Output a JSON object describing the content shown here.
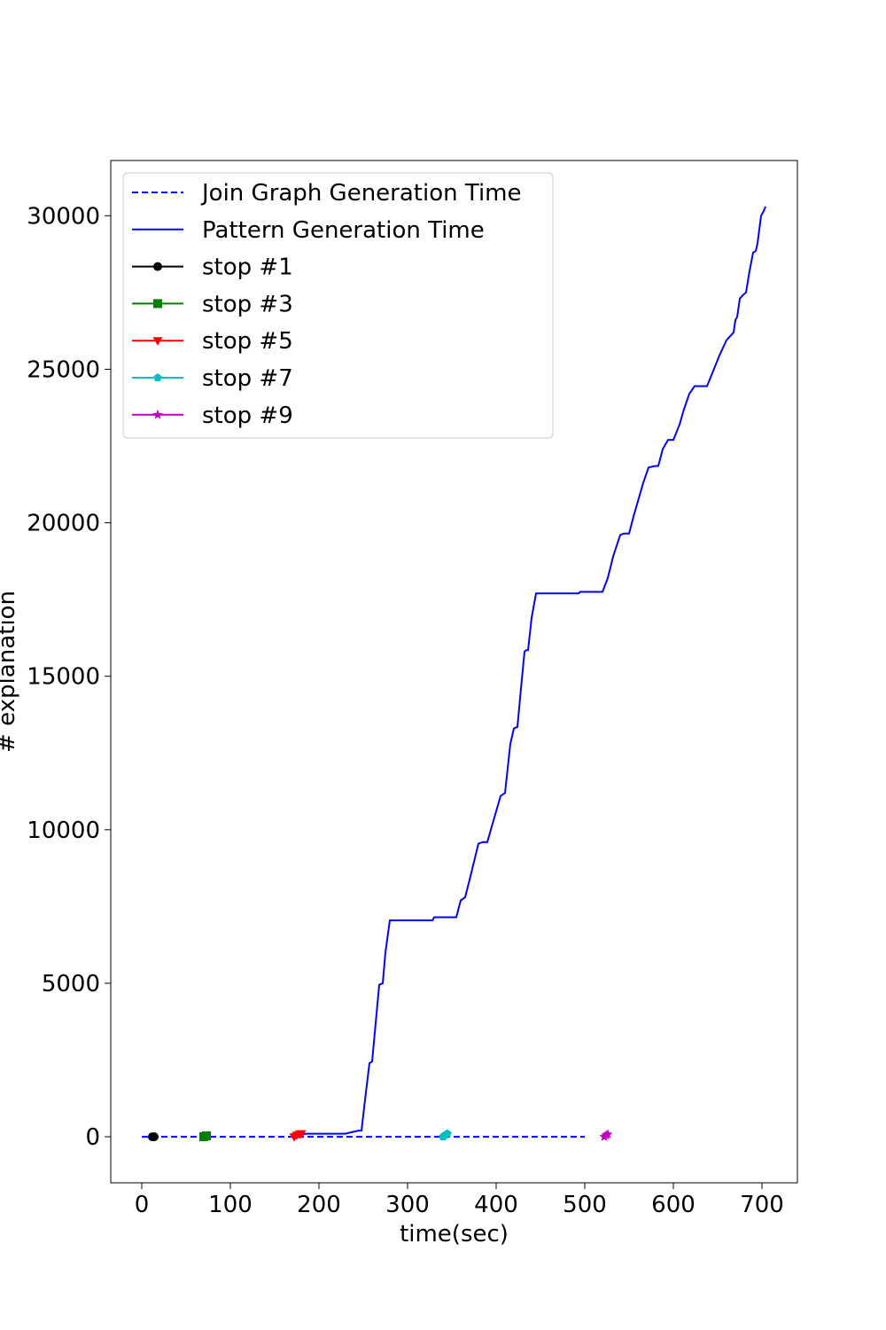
{
  "chart_data": {
    "type": "line",
    "title": "",
    "xlabel": "time(sec)",
    "ylabel": "# explanation",
    "xlim": [
      -35,
      740
    ],
    "ylim": [
      -1500,
      31800
    ],
    "xticks": [
      0,
      100,
      200,
      300,
      400,
      500,
      600,
      700
    ],
    "yticks": [
      0,
      5000,
      10000,
      15000,
      20000,
      25000,
      30000
    ],
    "grid": false,
    "legend_position": "upper-left",
    "series": [
      {
        "name": "Join Graph Generation Time",
        "style": "dashed",
        "color": "#0000ff",
        "x": [
          0,
          500
        ],
        "y": [
          0,
          0
        ]
      },
      {
        "name": "Pattern Generation Time",
        "style": "solid",
        "color": "#0000ff",
        "x": [
          175,
          180,
          185,
          230,
          237,
          245,
          248,
          252,
          257,
          260,
          264,
          268,
          272,
          275,
          280,
          285,
          290,
          300,
          315,
          328,
          330,
          340,
          350,
          355,
          360,
          365,
          372,
          380,
          385,
          390,
          395,
          400,
          405,
          410,
          416,
          420,
          424,
          428,
          432,
          434,
          436,
          440,
          445,
          448,
          451,
          456,
          460,
          475,
          493,
          495,
          505,
          520,
          526,
          532,
          540,
          544,
          550,
          555,
          560,
          566,
          572,
          580,
          583,
          588,
          594,
          600,
          607,
          612,
          618,
          624,
          630,
          634,
          638,
          645,
          652,
          660,
          668,
          670,
          672,
          675,
          678,
          682,
          686,
          690,
          693,
          695,
          699,
          702,
          704
        ],
        "y": [
          0,
          50,
          100,
          100,
          150,
          200,
          200,
          1200,
          2400,
          2450,
          3700,
          4950,
          5000,
          6000,
          7050,
          7050,
          7050,
          7050,
          7050,
          7050,
          7150,
          7150,
          7150,
          7150,
          7700,
          7800,
          8600,
          9550,
          9600,
          9600,
          10100,
          10600,
          11100,
          11200,
          12800,
          13300,
          13350,
          14600,
          15800,
          15850,
          15850,
          16900,
          17700,
          17700,
          17700,
          17700,
          17700,
          17700,
          17700,
          17750,
          17750,
          17750,
          18200,
          18900,
          19600,
          19650,
          19650,
          20200,
          20700,
          21300,
          21800,
          21850,
          21850,
          22400,
          22700,
          22700,
          23200,
          23700,
          24200,
          24450,
          24450,
          24450,
          24450,
          24950,
          25450,
          25950,
          26200,
          26600,
          26700,
          27300,
          27400,
          27500,
          28200,
          28800,
          28850,
          29100,
          30000,
          30150,
          30300
        ]
      },
      {
        "name": "stop #1",
        "color": "#000000",
        "marker": "circle",
        "x": [
          12,
          14
        ],
        "y": [
          0,
          0
        ]
      },
      {
        "name": "stop #3",
        "color": "#008000",
        "marker": "square",
        "x": [
          70,
          73
        ],
        "y": [
          0,
          30
        ]
      },
      {
        "name": "stop #5",
        "color": "#ff0000",
        "marker": "triangle-down",
        "x": [
          172,
          175,
          178,
          180
        ],
        "y": [
          0,
          50,
          80,
          100
        ]
      },
      {
        "name": "stop #7",
        "color": "#00bfbf",
        "marker": "pentagon",
        "x": [
          340,
          342,
          345
        ],
        "y": [
          0,
          50,
          100
        ]
      },
      {
        "name": "stop #9",
        "color": "#bf00bf",
        "marker": "star",
        "x": [
          522,
          524,
          526
        ],
        "y": [
          0,
          50,
          80
        ]
      }
    ]
  }
}
